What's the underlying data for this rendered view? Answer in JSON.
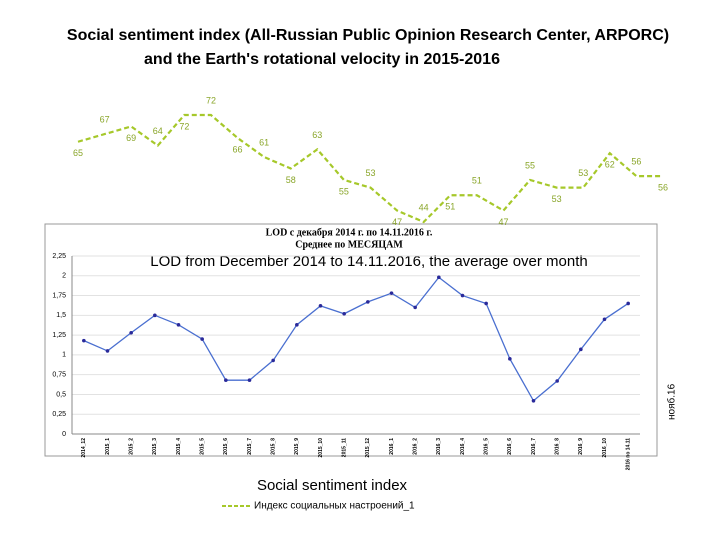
{
  "title": "Social sentiment index (All-Russian Public Opinion Research Center, ARPORC)",
  "subtitle": "and the Earth's rotational velocity in 2015-2016",
  "chart_data": [
    {
      "type": "line",
      "categories": [
        null,
        null,
        null,
        null,
        null,
        null,
        null,
        null,
        null,
        null,
        null,
        null,
        null,
        null,
        null,
        null,
        null,
        null,
        null,
        null,
        null,
        null,
        null
      ],
      "series": [
        {
          "name": "Индекс социальных настроений_1",
          "color": "#a6c82a",
          "values": [
            65,
            67,
            69,
            64,
            72,
            72,
            66,
            61,
            58,
            63,
            55,
            53,
            47,
            44,
            51,
            51,
            47,
            55,
            53,
            53,
            62,
            56,
            56
          ]
        }
      ],
      "annotation": "Social sentiment index"
    },
    {
      "type": "line",
      "title": "LOD с декабря 2014 г. по 14.11.2016 г.",
      "subtitle": "Среднее по МЕСЯЦАМ",
      "annotation": "LOD from December 2014 to 14.11.2016, the average over month",
      "side_label": "нояб.16",
      "categories": [
        "2014_12",
        "2015_1",
        "2015_2",
        "2015_3",
        "2015_4",
        "2015_5",
        "2015_6",
        "2015_7",
        "2015_8",
        "2015_9",
        "2015_10",
        "2015_11",
        "2015_12",
        "2016_1",
        "2016_2",
        "2016_3",
        "2016_4",
        "2016_5",
        "2016_6",
        "2016_7",
        "2016_8",
        "2016_9",
        "2016_10",
        "2016 по 14.11"
      ],
      "series": [
        {
          "name": "LOD",
          "color": "#4a6fd0",
          "values": [
            1.18,
            1.05,
            1.28,
            1.5,
            1.38,
            1.2,
            0.68,
            0.68,
            0.93,
            1.38,
            1.62,
            1.52,
            1.67,
            1.78,
            1.6,
            1.98,
            1.75,
            1.65,
            0.95,
            0.42,
            0.67,
            1.07,
            1.45,
            1.65
          ]
        }
      ],
      "ylim": [
        0,
        2.25
      ],
      "yticks": [
        0,
        {
          "value": 0.25,
          "label": "0,25"
        },
        {
          "value": 0.5,
          "label": "0,5"
        },
        {
          "value": 0.75,
          "label": "0,75"
        },
        1,
        {
          "value": 1.25,
          "label": "1,25"
        },
        {
          "value": 1.5,
          "label": "1,5"
        },
        {
          "value": 1.75,
          "label": "1,75"
        },
        2,
        {
          "value": 2.25,
          "label": "2,25"
        }
      ]
    }
  ]
}
